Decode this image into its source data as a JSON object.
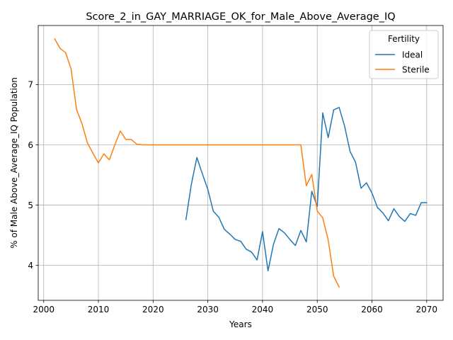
{
  "chart_data": {
    "type": "line",
    "title": "Score_2_in_GAY_MARRIAGE_OK_for_Male_Above_Average_IQ",
    "xlabel": "Years",
    "ylabel": "% of Male Above_Average_IQ Population",
    "xlim": [
      1999,
      2073
    ],
    "ylim": [
      3.42,
      7.98
    ],
    "xticks": [
      2000,
      2010,
      2020,
      2030,
      2040,
      2050,
      2060,
      2070
    ],
    "yticks": [
      4,
      5,
      6,
      7
    ],
    "grid": true,
    "legend": {
      "title": "Fertility",
      "position": "top-right"
    },
    "series": [
      {
        "name": "Ideal",
        "color": "#1f77b4",
        "x": [
          2026,
          2027,
          2028,
          2029,
          2030,
          2031,
          2032,
          2033,
          2034,
          2035,
          2036,
          2037,
          2038,
          2039,
          2040,
          2041,
          2042,
          2043,
          2044,
          2045,
          2046,
          2047,
          2048,
          2049,
          2050,
          2051,
          2052,
          2053,
          2054,
          2055,
          2056,
          2057,
          2058,
          2059,
          2060,
          2061,
          2062,
          2063,
          2064,
          2065,
          2066,
          2067,
          2068,
          2069,
          2070
        ],
        "y": [
          4.76,
          5.35,
          5.79,
          5.52,
          5.26,
          4.9,
          4.8,
          4.6,
          4.52,
          4.43,
          4.4,
          4.27,
          4.22,
          4.09,
          4.56,
          3.91,
          4.35,
          4.61,
          4.54,
          4.43,
          4.33,
          4.58,
          4.39,
          5.23,
          4.98,
          6.53,
          6.12,
          6.58,
          6.62,
          6.31,
          5.89,
          5.71,
          5.28,
          5.37,
          5.2,
          4.96,
          4.87,
          4.74,
          4.94,
          4.81,
          4.73,
          4.86,
          4.83,
          5.04,
          5.04
        ]
      },
      {
        "name": "Sterile",
        "color": "#ff7f0e",
        "x": [
          2002,
          2003,
          2004,
          2005,
          2006,
          2007,
          2008,
          2009,
          2010,
          2011,
          2012,
          2013,
          2014,
          2015,
          2016,
          2017,
          2018,
          2019,
          2020,
          2021,
          2022,
          2023,
          2024,
          2025,
          2026,
          2027,
          2028,
          2029,
          2030,
          2031,
          2032,
          2033,
          2034,
          2035,
          2036,
          2037,
          2038,
          2039,
          2040,
          2041,
          2042,
          2043,
          2044,
          2045,
          2046,
          2047,
          2048,
          2049,
          2050,
          2051,
          2052,
          2053,
          2054
        ],
        "y": [
          7.76,
          7.6,
          7.53,
          7.26,
          6.59,
          6.35,
          6.03,
          5.86,
          5.7,
          5.85,
          5.75,
          6.0,
          6.23,
          6.09,
          6.09,
          6.01,
          6.0,
          6.0,
          6.0,
          6.0,
          6.0,
          6.0,
          6.0,
          6.0,
          6.0,
          6.0,
          6.0,
          6.0,
          6.0,
          6.0,
          6.0,
          6.0,
          6.0,
          6.0,
          6.0,
          6.0,
          6.0,
          6.0,
          6.0,
          6.0,
          6.0,
          6.0,
          6.0,
          6.0,
          6.0,
          6.0,
          5.32,
          5.51,
          4.9,
          4.79,
          4.42,
          3.82,
          3.64
        ]
      }
    ]
  }
}
